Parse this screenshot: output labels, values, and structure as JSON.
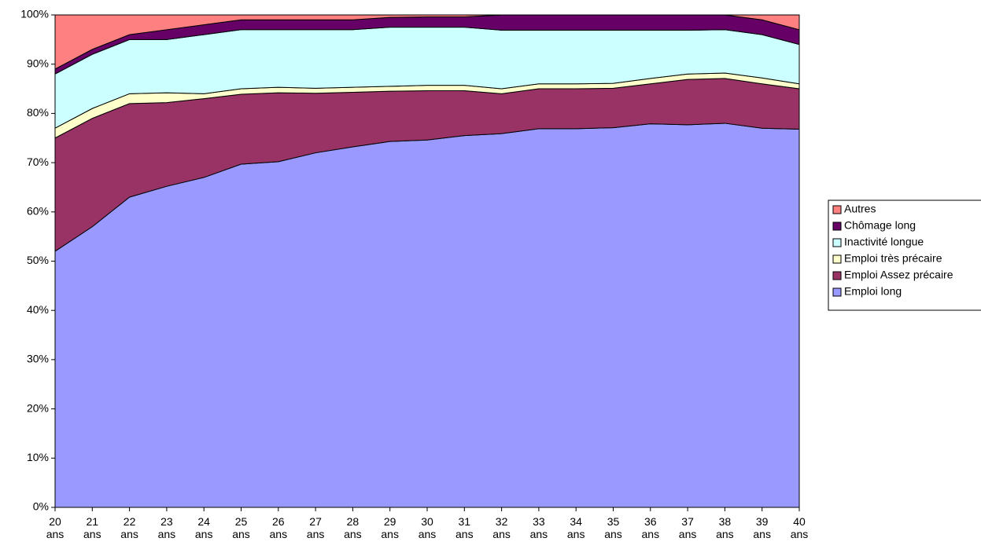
{
  "chart_data": {
    "type": "stacked_area",
    "categories": [
      "20 ans",
      "21 ans",
      "22 ans",
      "23 ans",
      "24 ans",
      "25 ans",
      "26 ans",
      "27 ans",
      "28 ans",
      "29 ans",
      "30 ans",
      "31 ans",
      "32 ans",
      "33 ans",
      "34 ans",
      "35 ans",
      "36 ans",
      "37 ans",
      "38 ans",
      "39 ans",
      "40 ans"
    ],
    "series": [
      {
        "name": "Emploi long",
        "color": "#9999ff",
        "values": [
          52,
          57,
          63,
          65.2,
          67,
          69.7,
          70.2,
          72,
          73.2,
          74.3,
          74.6,
          75.5,
          75.9,
          76.9,
          76.9,
          77.1,
          77.9,
          77.7,
          78,
          77,
          76.8
        ]
      },
      {
        "name": "Emploi Assez précaire",
        "color": "#993366",
        "values": [
          23,
          22,
          19,
          17,
          16,
          14.2,
          14,
          12.1,
          11.1,
          10.2,
          10,
          9.1,
          8.1,
          8.1,
          8.1,
          8,
          8.1,
          9.2,
          9.1,
          9,
          8.2
        ]
      },
      {
        "name": "Emploi très précaire",
        "color": "#ffffcc",
        "values": [
          2,
          2,
          2,
          2,
          1,
          1.1,
          1.1,
          1,
          1,
          1,
          1.1,
          1.1,
          1,
          1,
          1,
          1,
          1.1,
          1.1,
          1.1,
          1.2,
          1
        ]
      },
      {
        "name": "Inactivité longue",
        "color": "#ccffff",
        "values": [
          11,
          11,
          11,
          10.8,
          12,
          12,
          11.7,
          11.9,
          11.7,
          12,
          11.8,
          11.8,
          11.9,
          10.9,
          10.9,
          10.8,
          9.8,
          8.9,
          8.8,
          8.8,
          8
        ]
      },
      {
        "name": "Chômage long",
        "color": "#660066",
        "values": [
          1,
          1,
          1,
          2,
          2,
          2,
          2,
          2,
          2,
          2,
          2.1,
          2.1,
          3.1,
          3.1,
          3.1,
          3.1,
          3.1,
          3.1,
          3,
          3,
          3
        ]
      },
      {
        "name": "Autres",
        "color": "#ff8080",
        "values": [
          11,
          7,
          4,
          3,
          2,
          1,
          1,
          1,
          1,
          0.5,
          0.4,
          0.4,
          0,
          0,
          0,
          0,
          0,
          0,
          0,
          1,
          3
        ]
      }
    ],
    "ylim": [
      0,
      100
    ],
    "yticks": [
      {
        "value": 0,
        "label": "0%"
      },
      {
        "value": 10,
        "label": "10%"
      },
      {
        "value": 20,
        "label": "20%"
      },
      {
        "value": 30,
        "label": "30%"
      },
      {
        "value": 40,
        "label": "40%"
      },
      {
        "value": 50,
        "label": "50%"
      },
      {
        "value": 60,
        "label": "60%"
      },
      {
        "value": 70,
        "label": "70%"
      },
      {
        "value": 80,
        "label": "80%"
      },
      {
        "value": 90,
        "label": "90%"
      },
      {
        "value": 100,
        "label": "100%"
      }
    ],
    "legend": "right"
  }
}
